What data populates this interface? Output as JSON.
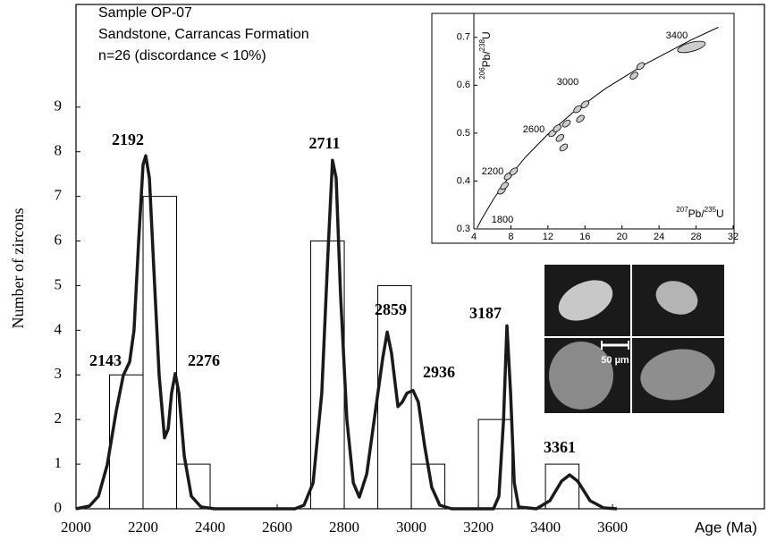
{
  "chart_data": [
    {
      "type": "histogram",
      "annotations": [
        "Sample OP-07",
        "Sandstone, Carrancas Formation",
        "n=26 (discordance < 10%)"
      ],
      "x_label": "Age (Ma)",
      "y_label": "Number of zircons",
      "bins": [
        2100,
        2200,
        2300,
        2400,
        2500,
        2600,
        2700,
        2800,
        2900,
        3000,
        3100,
        3200,
        3300,
        3400,
        3500
      ],
      "values": [
        3,
        7,
        1,
        0,
        0,
        0,
        6,
        0,
        5,
        1,
        0,
        2,
        0,
        1
      ],
      "curve": {
        "x": [
          2000,
          2040,
          2067,
          2093,
          2120,
          2141,
          2160,
          2173,
          2187,
          2200,
          2208,
          2219,
          2232,
          2248,
          2264,
          2275,
          2285,
          2296,
          2307,
          2323,
          2344,
          2373,
          2413,
          2653,
          2680,
          2707,
          2733,
          2752,
          2765,
          2776,
          2789,
          2808,
          2827,
          2845,
          2867,
          2893,
          2915,
          2928,
          2941,
          2960,
          2973,
          2987,
          3005,
          3021,
          3040,
          3061,
          3085,
          3120,
          3245,
          3261,
          3275,
          3285,
          3296,
          3307,
          3320,
          3373,
          3413,
          3448,
          3472,
          3496,
          3533,
          3573,
          3613
        ],
        "y": [
          0,
          0.06,
          0.28,
          0.98,
          2.19,
          2.99,
          3.29,
          4.0,
          6.0,
          7.71,
          7.91,
          7.41,
          5.4,
          2.99,
          1.59,
          1.79,
          2.59,
          3.03,
          2.59,
          1.18,
          0.28,
          0.04,
          0,
          0,
          0.08,
          0.58,
          2.59,
          5.8,
          7.81,
          7.41,
          4.8,
          1.99,
          0.58,
          0.26,
          0.78,
          2.19,
          3.39,
          3.96,
          3.49,
          2.29,
          2.39,
          2.59,
          2.65,
          2.39,
          1.39,
          0.48,
          0.08,
          0,
          0,
          0.28,
          1.99,
          4.1,
          2.59,
          0.58,
          0.04,
          0,
          0.18,
          0.62,
          0.76,
          0.62,
          0.18,
          0.02,
          0
        ]
      },
      "peaks": [
        2143,
        2192,
        2276,
        2711,
        2859,
        2936,
        3187,
        3361
      ],
      "xlim": [
        2000,
        4053
      ],
      "xticks": [
        2000,
        2200,
        2400,
        2600,
        2800,
        3000,
        3200,
        3400,
        3600
      ],
      "ylim": [
        0,
        11.3
      ],
      "yticks": [
        0,
        1,
        2,
        3,
        4,
        5,
        6,
        7,
        8,
        9
      ]
    },
    {
      "type": "scatter",
      "x_label": [
        "207",
        "Pb/",
        "235",
        "U"
      ],
      "y_label": [
        "206",
        "Pb/",
        "238",
        "U"
      ],
      "x": [
        7,
        7.3,
        7.7,
        8.3,
        12.5,
        13,
        13.3,
        14,
        13.7,
        15.2,
        15.5,
        16,
        21.3,
        22,
        27.5
      ],
      "y": [
        0.38,
        0.39,
        0.41,
        0.42,
        0.5,
        0.51,
        0.49,
        0.52,
        0.47,
        0.55,
        0.53,
        0.56,
        0.62,
        0.64,
        0.68
      ],
      "concordia": {
        "x": [
          4.335,
          4.887,
          6.169,
          7.73,
          9.629,
          11.944,
          14.762,
          18.192,
          22.37,
          27.46,
          30.41
        ],
        "y": [
          0.3017,
          0.3219,
          0.3637,
          0.4067,
          0.4511,
          0.4968,
          0.544,
          0.5927,
          0.6428,
          0.6945,
          0.7211
        ]
      },
      "ages": [
        1800,
        2200,
        2600,
        3000,
        3400
      ],
      "xlim": [
        4,
        32
      ],
      "xticks": [
        4,
        8,
        12,
        16,
        20,
        24,
        28,
        32
      ],
      "ylim": [
        0.3,
        0.75
      ],
      "yticks": [
        0.3,
        0.4,
        0.5,
        0.6,
        0.7
      ]
    }
  ],
  "images": {
    "scale_label": "50 µm"
  }
}
